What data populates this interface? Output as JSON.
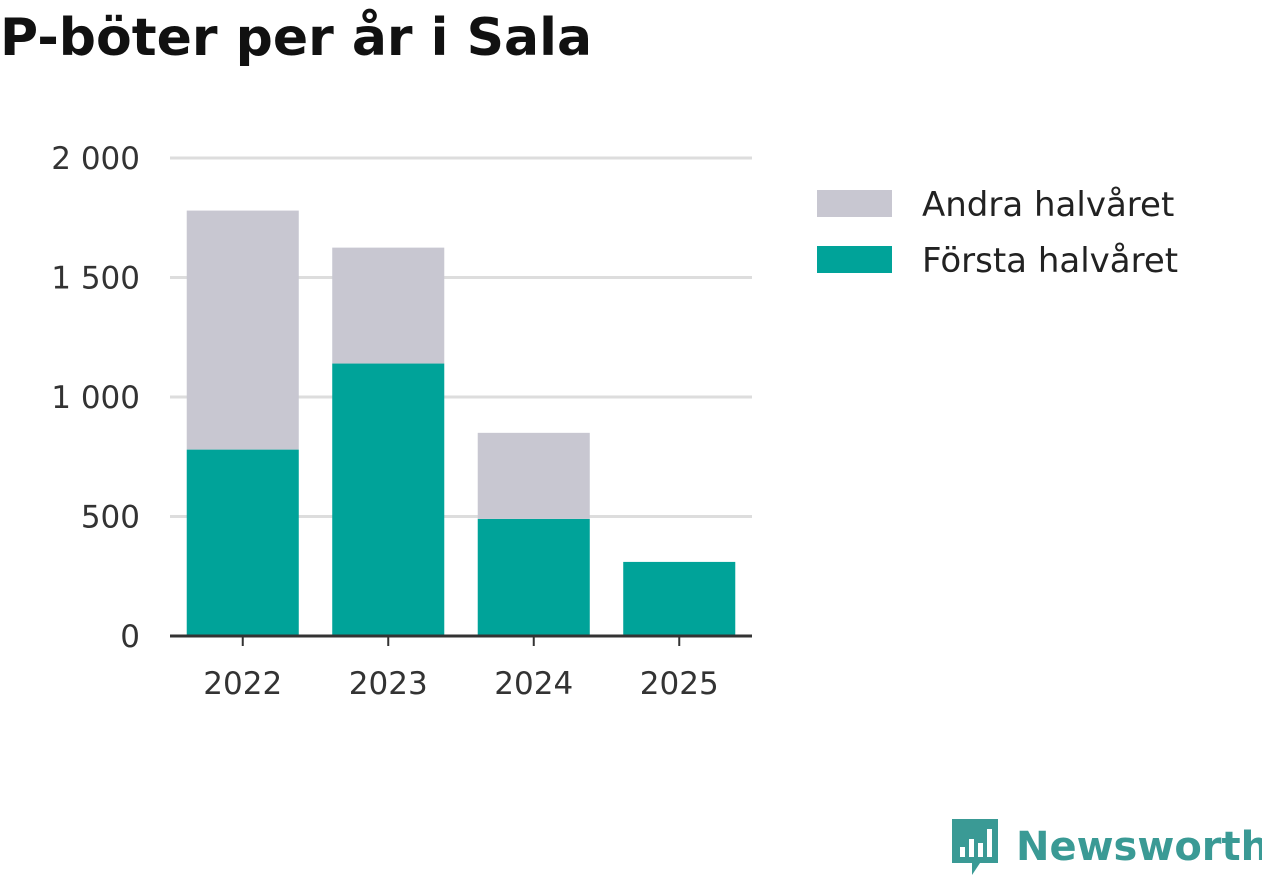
{
  "title": "P-böter per år i Sala",
  "brand": {
    "name": "Newsworthy",
    "color": "#3a9a95"
  },
  "colors": {
    "forsta": "#00a399",
    "andra": "#c8c7d1",
    "grid": "#dddddd",
    "axis": "#333333"
  },
  "chart_data": {
    "type": "bar",
    "stacked": true,
    "title": "P-böter per år i Sala",
    "xlabel": "",
    "ylabel": "",
    "categories": [
      "2022",
      "2023",
      "2024",
      "2025"
    ],
    "series": [
      {
        "name": "Första halvåret",
        "color": "#00a399",
        "values": [
          780,
          1140,
          490,
          310
        ]
      },
      {
        "name": "Andra halvåret",
        "color": "#c8c7d1",
        "values": [
          1000,
          485,
          360,
          0
        ]
      }
    ],
    "ylim": [
      0,
      2000
    ],
    "yticks": [
      0,
      500,
      1000,
      1500,
      2000
    ],
    "ytick_labels": [
      "0",
      "500",
      "1 000",
      "1 500",
      "2 000"
    ],
    "grid": true,
    "legend_position": "right",
    "legend_order": [
      "Andra halvåret",
      "Första halvåret"
    ]
  }
}
